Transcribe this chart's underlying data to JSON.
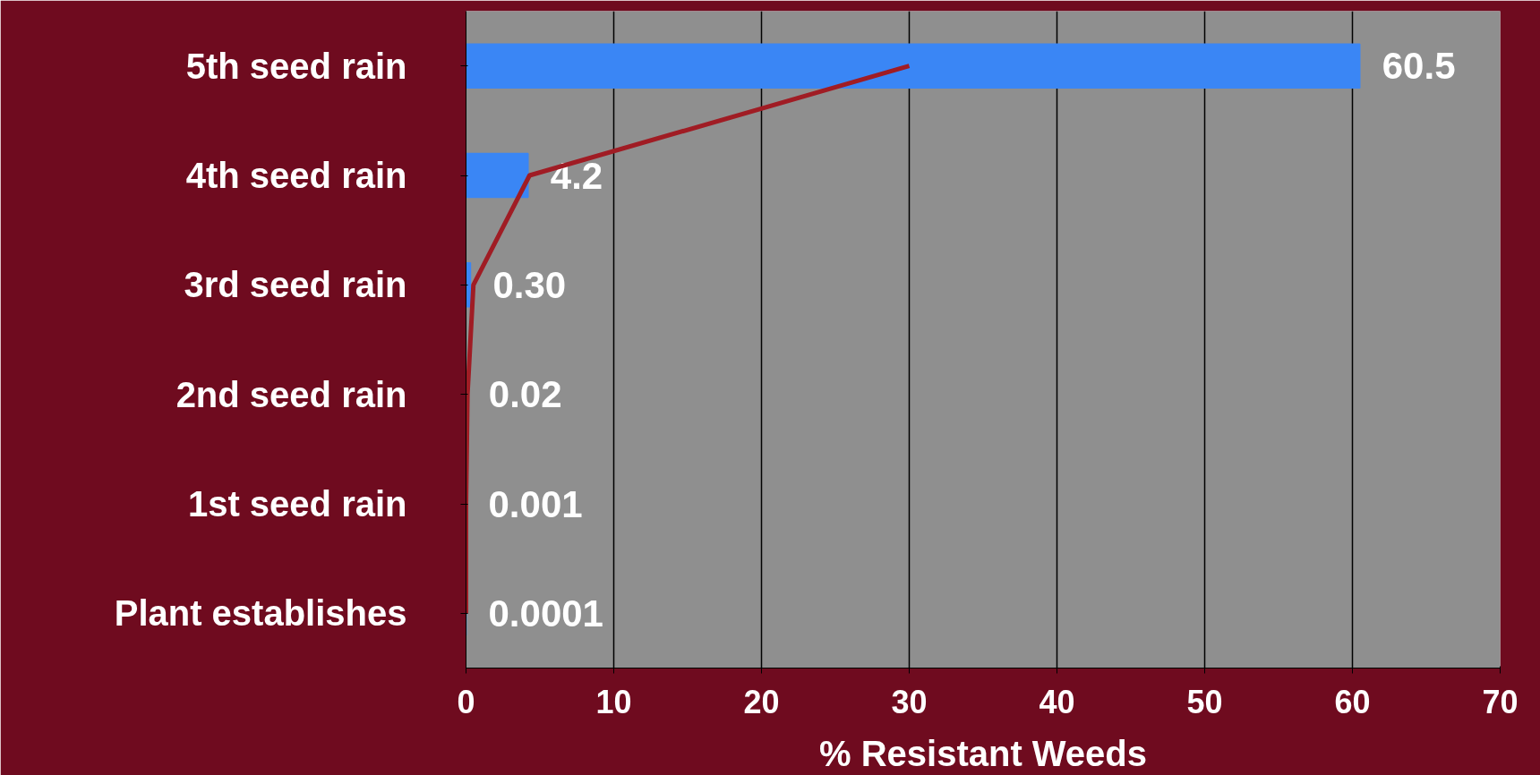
{
  "chart_data": {
    "type": "bar",
    "orientation": "horizontal",
    "xlabel": "% Resistant Weeds",
    "categories": [
      "5th seed rain",
      "4th seed rain",
      "3rd seed rain",
      "2nd seed rain",
      "1st seed rain",
      "Plant establishes"
    ],
    "series": [
      {
        "color": "#3a86f5",
        "values": [
          60.5,
          4.2,
          0.3,
          0.02,
          0.001,
          0.0001
        ],
        "value_labels": [
          "60.5",
          "4.2",
          "0.30",
          "0.02",
          "0.001",
          "0.0001"
        ]
      },
      {
        "type": "line",
        "color": "#a01c24",
        "values": [
          30,
          4.3,
          0.5,
          0.1,
          0,
          0
        ]
      }
    ],
    "xlim": [
      0,
      70
    ],
    "xticks": [
      0,
      10,
      20,
      30,
      40,
      50,
      60,
      70
    ],
    "grid": "x"
  }
}
